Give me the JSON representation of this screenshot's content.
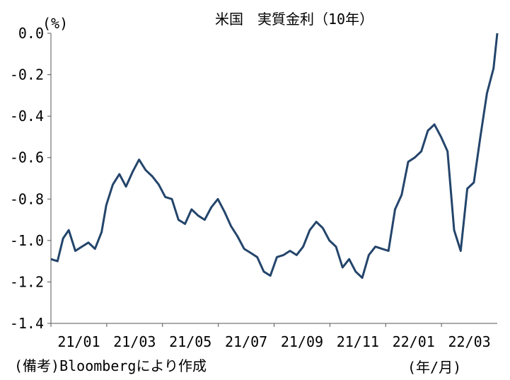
{
  "chart_data": {
    "type": "line",
    "title": "米国　実質金利（10年）",
    "unit_label": "(%)",
    "source_note": "(備考)Bloombergにより作成",
    "x_axis_unit": "(年/月)",
    "xlabel": "",
    "ylabel": "",
    "ylim": [
      -1.4,
      0.0
    ],
    "y_ticks": [
      "0.0",
      "-0.2",
      "-0.4",
      "-0.6",
      "-0.8",
      "-1.0",
      "-1.2",
      "-1.4"
    ],
    "x_ticks": [
      "21/01",
      "21/03",
      "21/05",
      "21/07",
      "21/09",
      "21/11",
      "22/01",
      "22/03"
    ],
    "grid": false,
    "line_color": "#24456b",
    "series": [
      {
        "x": [
          "2021-01-01",
          "2021-01-08",
          "2021-01-14",
          "2021-01-20",
          "2021-01-27",
          "2021-02-03",
          "2021-02-10",
          "2021-02-17",
          "2021-02-24",
          "2021-03-01",
          "2021-03-08",
          "2021-03-15",
          "2021-03-22",
          "2021-03-29",
          "2021-04-05",
          "2021-04-12",
          "2021-04-19",
          "2021-04-26",
          "2021-05-03",
          "2021-05-10",
          "2021-05-17",
          "2021-05-24",
          "2021-05-31",
          "2021-06-07",
          "2021-06-14",
          "2021-06-21",
          "2021-06-28",
          "2021-07-05",
          "2021-07-12",
          "2021-07-19",
          "2021-07-26",
          "2021-08-02",
          "2021-08-09",
          "2021-08-16",
          "2021-08-23",
          "2021-08-30",
          "2021-09-06",
          "2021-09-13",
          "2021-09-20",
          "2021-09-27",
          "2021-10-04",
          "2021-10-11",
          "2021-10-18",
          "2021-10-25",
          "2021-11-01",
          "2021-11-08",
          "2021-11-15",
          "2021-11-22",
          "2021-11-29",
          "2021-12-06",
          "2021-12-13",
          "2021-12-20",
          "2021-12-27",
          "2022-01-03",
          "2022-01-10",
          "2022-01-17",
          "2022-01-24",
          "2022-01-31",
          "2022-02-07",
          "2022-02-14",
          "2022-02-21",
          "2022-02-28",
          "2022-03-07",
          "2022-03-14",
          "2022-03-21",
          "2022-03-28",
          "2022-04-04",
          "2022-04-11",
          "2022-04-18",
          "2022-04-22"
        ],
        "values": [
          -1.09,
          -1.1,
          -0.99,
          -0.95,
          -1.05,
          -1.03,
          -1.01,
          -1.04,
          -0.96,
          -0.83,
          -0.73,
          -0.68,
          -0.74,
          -0.67,
          -0.61,
          -0.66,
          -0.69,
          -0.73,
          -0.79,
          -0.8,
          -0.9,
          -0.92,
          -0.85,
          -0.88,
          -0.9,
          -0.84,
          -0.8,
          -0.86,
          -0.93,
          -0.98,
          -1.04,
          -1.06,
          -1.08,
          -1.15,
          -1.17,
          -1.08,
          -1.07,
          -1.05,
          -1.07,
          -1.03,
          -0.95,
          -0.91,
          -0.94,
          -1.0,
          -1.03,
          -1.13,
          -1.09,
          -1.15,
          -1.18,
          -1.07,
          -1.03,
          -1.04,
          -1.05,
          -0.85,
          -0.78,
          -0.62,
          -0.6,
          -0.57,
          -0.47,
          -0.44,
          -0.5,
          -0.57,
          -0.95,
          -1.05,
          -0.75,
          -0.72,
          -0.5,
          -0.29,
          -0.17,
          0.0
        ]
      }
    ]
  }
}
